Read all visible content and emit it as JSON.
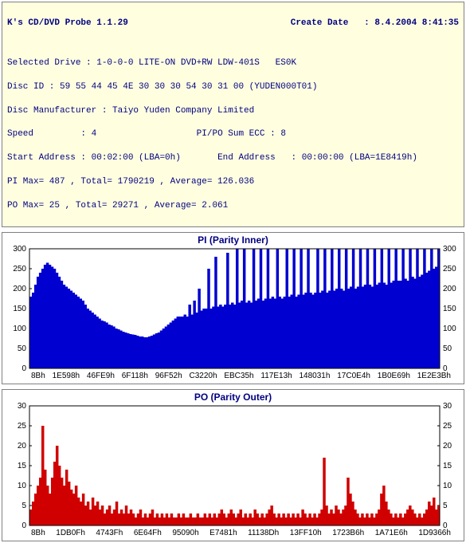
{
  "header": {
    "app_title": "K's CD/DVD Probe 1.1.29",
    "create_label": "Create Date",
    "create_value": "8.4.2004 8:41:35",
    "drive_label": "Selected Drive :",
    "drive_value": "1-0-0-0 LITE-ON DVD+RW LDW-401S   ES0K",
    "discid_label": "Disc ID :",
    "discid_value": "59 55 44 45 4E 30 30 30 54 30 31 00 (YUDEN000T01)",
    "manuf_label": "Disc Manufacturer :",
    "manuf_value": "Taiyo Yuden Company Limited",
    "speed_label": "Speed",
    "speed_value": "4",
    "ecc_label": "PI/PO Sum ECC :",
    "ecc_value": "8",
    "start_label": "Start Address",
    "start_value": "00:02:00 (LBA=0h)",
    "end_label": "End Address",
    "end_value": "00:00:00 (LBA=1E8419h)",
    "pi_stats": "PI Max= 487 , Total= 1790219 , Average= 126.036",
    "po_stats": "PO Max= 25 , Total= 29271 , Average= 2.061"
  },
  "pi_chart": {
    "type": "bar",
    "title": "PI (Parity Inner)",
    "color": "#0000d0",
    "border_color": "#000",
    "background_color": "#ffffff",
    "ylim": [
      0,
      300
    ],
    "ytick_step": 50,
    "xticks": [
      "8Bh",
      "1E598h",
      "46FE9h",
      "6F118h",
      "96F52h",
      "C3220h",
      "EBC35h",
      "117E13h",
      "148031h",
      "17C0E4h",
      "1B0E69h",
      "1E2E3Bh"
    ],
    "values": [
      180,
      190,
      210,
      230,
      240,
      250,
      260,
      265,
      260,
      255,
      250,
      240,
      230,
      220,
      210,
      205,
      200,
      195,
      190,
      185,
      180,
      175,
      170,
      160,
      150,
      145,
      140,
      135,
      130,
      125,
      120,
      118,
      115,
      110,
      108,
      105,
      100,
      98,
      95,
      92,
      90,
      88,
      86,
      85,
      84,
      82,
      80,
      80,
      78,
      78,
      80,
      82,
      85,
      88,
      90,
      95,
      100,
      105,
      110,
      115,
      120,
      125,
      130,
      130,
      130,
      135,
      130,
      160,
      135,
      170,
      140,
      200,
      145,
      150,
      150,
      250,
      150,
      155,
      280,
      155,
      160,
      155,
      160,
      290,
      160,
      165,
      160,
      300,
      165,
      170,
      300,
      165,
      170,
      165,
      300,
      170,
      175,
      300,
      170,
      175,
      300,
      175,
      180,
      175,
      300,
      180,
      175,
      180,
      300,
      180,
      185,
      300,
      180,
      185,
      300,
      185,
      190,
      300,
      190,
      185,
      190,
      300,
      190,
      195,
      300,
      190,
      195,
      300,
      195,
      200,
      300,
      200,
      195,
      300,
      200,
      205,
      300,
      200,
      205,
      300,
      205,
      210,
      300,
      210,
      205,
      300,
      210,
      215,
      300,
      215,
      210,
      300,
      215,
      220,
      300,
      220,
      220,
      300,
      225,
      220,
      300,
      230,
      225,
      300,
      230,
      235,
      300,
      240,
      245,
      300,
      250,
      255,
      300
    ]
  },
  "po_chart": {
    "type": "bar",
    "title": "PO (Parity Outer)",
    "color": "#d00000",
    "border_color": "#000",
    "background_color": "#ffffff",
    "ylim": [
      0,
      30
    ],
    "ytick_step": 5,
    "xticks": [
      "8Bh",
      "1DB0Fh",
      "4743Fh",
      "6E64Fh",
      "95090h",
      "E7481h",
      "11138Dh",
      "13FF10h",
      "1723B6h",
      "1A71E6h",
      "1D9366h"
    ],
    "values": [
      4,
      6,
      8,
      10,
      12,
      25,
      14,
      10,
      8,
      12,
      16,
      20,
      15,
      12,
      10,
      14,
      11,
      9,
      8,
      10,
      7,
      6,
      8,
      5,
      6,
      4,
      7,
      5,
      6,
      4,
      5,
      3,
      4,
      5,
      3,
      4,
      6,
      3,
      4,
      3,
      5,
      3,
      4,
      3,
      2,
      3,
      4,
      2,
      3,
      2,
      3,
      4,
      2,
      3,
      2,
      3,
      2,
      3,
      2,
      3,
      2,
      2,
      3,
      2,
      3,
      2,
      2,
      3,
      2,
      2,
      3,
      2,
      2,
      3,
      2,
      3,
      2,
      3,
      2,
      3,
      4,
      3,
      2,
      3,
      4,
      3,
      2,
      3,
      4,
      2,
      3,
      2,
      3,
      2,
      4,
      3,
      2,
      3,
      2,
      3,
      4,
      5,
      3,
      2,
      3,
      2,
      3,
      2,
      3,
      2,
      3,
      2,
      3,
      2,
      4,
      3,
      2,
      3,
      2,
      3,
      2,
      3,
      4,
      17,
      5,
      3,
      4,
      3,
      5,
      4,
      3,
      4,
      5,
      12,
      8,
      6,
      4,
      3,
      2,
      3,
      2,
      3,
      2,
      3,
      2,
      3,
      4,
      8,
      10,
      6,
      4,
      3,
      2,
      3,
      2,
      3,
      2,
      3,
      4,
      5,
      4,
      3,
      2,
      3,
      2,
      3,
      4,
      6,
      5,
      7,
      4,
      5
    ]
  }
}
